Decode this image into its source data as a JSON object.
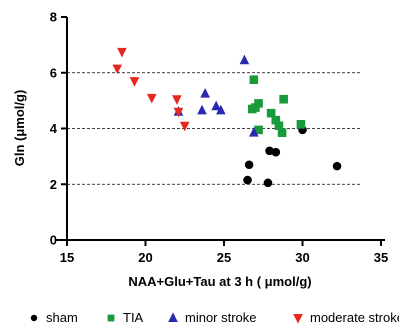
{
  "chart_data": {
    "type": "scatter",
    "title": "",
    "xlabel": "NAA+Glu+Tau at 3 h ( μmol/g)",
    "ylabel": "Gln (μmol/g)",
    "xlim": [
      15,
      35
    ],
    "ylim": [
      0,
      8
    ],
    "xticks": [
      "15",
      "20",
      "25",
      "30",
      "35"
    ],
    "yticks": [
      "0",
      "2",
      "4",
      "6",
      "8"
    ],
    "grid": "dashed horizontal at y = 2, 4, 6",
    "legend_position": "bottom",
    "series": [
      {
        "name": "sham",
        "marker": "circle",
        "color": "#000000",
        "x": [
          26.5,
          26.6,
          27.8,
          27.9,
          28.3,
          30.0,
          32.2
        ],
        "y": [
          2.15,
          2.7,
          2.05,
          3.2,
          3.15,
          3.95,
          2.65
        ]
      },
      {
        "name": "TIA",
        "marker": "square",
        "color": "#1a9a3a",
        "x": [
          26.9,
          27.2,
          27.0,
          26.8,
          28.0,
          28.3,
          28.5,
          28.7,
          29.9,
          28.8,
          27.2
        ],
        "y": [
          5.75,
          4.9,
          4.75,
          4.7,
          4.55,
          4.3,
          4.1,
          3.85,
          4.15,
          5.05,
          3.95
        ]
      },
      {
        "name": "minor stroke",
        "marker": "triangle-up",
        "color": "#2a2ab0",
        "x": [
          26.3,
          24.5,
          24.8,
          23.8,
          23.6,
          22.1,
          26.9
        ],
        "y": [
          6.45,
          4.8,
          4.65,
          5.25,
          4.65,
          4.6,
          3.85
        ]
      },
      {
        "name": "moderate stroke",
        "marker": "triangle-down",
        "color": "#e8281e",
        "x": [
          18.5,
          18.2,
          19.3,
          20.4,
          22.0,
          22.1,
          22.5
        ],
        "y": [
          6.75,
          6.15,
          5.7,
          5.1,
          5.05,
          4.6,
          4.1
        ]
      }
    ]
  }
}
